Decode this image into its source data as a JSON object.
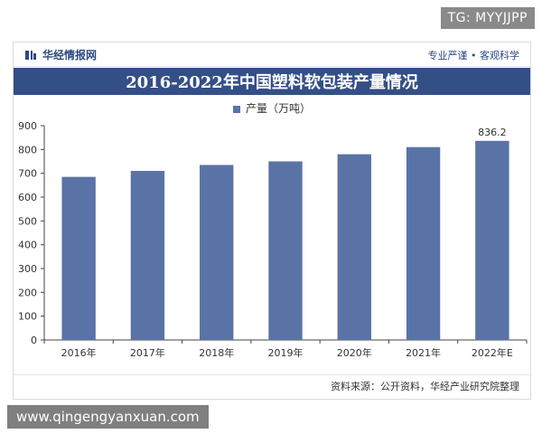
{
  "overlay": {
    "top_right": "TG: MYYJJPP",
    "bottom_left": "www.qingengyanxuan.com"
  },
  "header": {
    "brand": "华经情报网",
    "tagline": "专业严谨 • 客观科学"
  },
  "footer": {
    "source": "资料来源：公开资料，华经产业研究院整理"
  },
  "colors": {
    "bar": "#5a73a6",
    "title_band": "#344f86"
  },
  "chart_data": {
    "type": "bar",
    "title": "2016-2022年中国塑料软包装产量情况",
    "categories": [
      "2016年",
      "2017年",
      "2018年",
      "2019年",
      "2020年",
      "2021年",
      "2022年E"
    ],
    "series": [
      {
        "name": "产量（万吨）",
        "values": [
          685,
          710,
          735,
          750,
          780,
          810,
          836.2
        ]
      }
    ],
    "data_labels": [
      null,
      null,
      null,
      null,
      null,
      null,
      "836.2"
    ],
    "ylim": [
      0,
      900
    ],
    "yticks": [
      0,
      100,
      200,
      300,
      400,
      500,
      600,
      700,
      800,
      900
    ],
    "xlabel": "",
    "ylabel": "",
    "grid": false,
    "legend_position": "top-center"
  }
}
